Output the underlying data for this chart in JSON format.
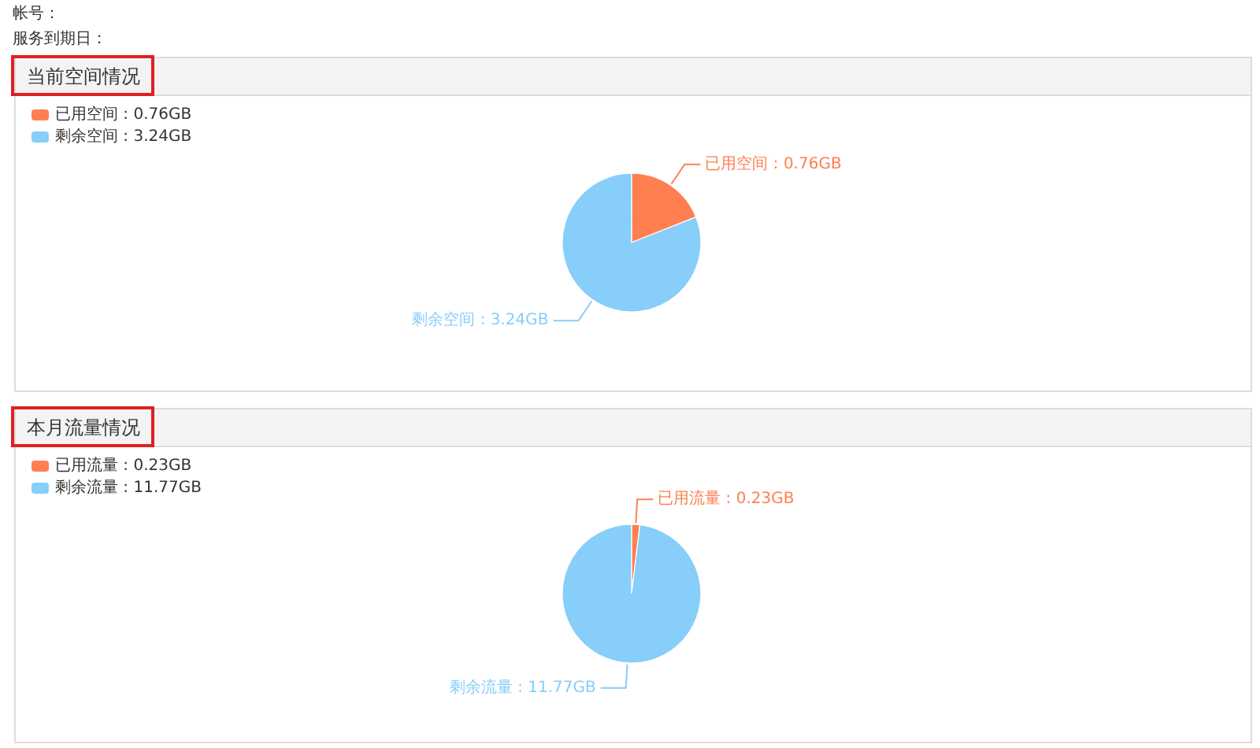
{
  "chart_data": [
    {
      "type": "other",
      "annotations": [
        "帐号：",
        "服务到期日："
      ]
    },
    {
      "type": "pie",
      "title": "当前空间情况",
      "categories": [
        "已用空间 : 0.76GB",
        "剩余空间 : 3.24GB"
      ],
      "values": [
        0.76,
        3.24
      ],
      "colors": [
        "#ff7f50",
        "#87cefa"
      ],
      "legend": "top left"
    },
    {
      "type": "pie",
      "title": "本月流量情况",
      "categories": [
        "已用流量 : 0.23GB",
        "剩余流量 : 11.77GB"
      ],
      "values": [
        0.23,
        11.77
      ],
      "colors": [
        "#ff7f50",
        "#87cefa"
      ],
      "legend": "top left"
    }
  ]
}
